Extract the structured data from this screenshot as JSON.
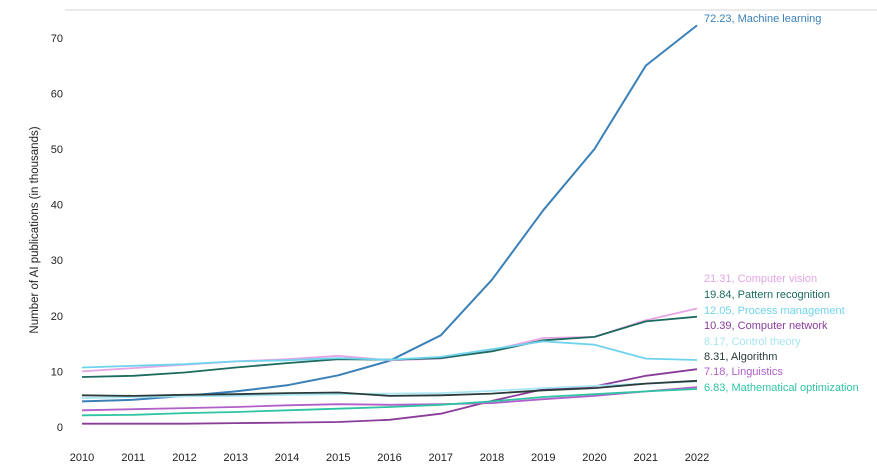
{
  "chart_data": {
    "type": "line",
    "title": "",
    "xlabel": "",
    "ylabel": "Number of AI publications (in thousands)",
    "ylim": [
      0,
      72
    ],
    "yticks": [
      0,
      10,
      20,
      30,
      40,
      50,
      60,
      70
    ],
    "x": [
      "2010",
      "2011",
      "2012",
      "2013",
      "2014",
      "2015",
      "2016",
      "2017",
      "2018",
      "2019",
      "2020",
      "2021",
      "2022"
    ],
    "grid": false,
    "legend": "end-of-line labels",
    "series": [
      {
        "name": "Machine learning",
        "end_label": "72.23, Machine learning",
        "color": "#3a80b8",
        "values": [
          4.6,
          4.9,
          5.6,
          6.4,
          7.5,
          9.3,
          11.9,
          16.5,
          26.5,
          39.0,
          50.0,
          65.0,
          72.23
        ]
      },
      {
        "name": "Computer vision",
        "end_label": "21.31, Computer vision",
        "color": "#e6a6e6",
        "values": [
          10.0,
          10.6,
          11.2,
          11.8,
          12.2,
          12.8,
          12.0,
          12.3,
          13.8,
          16.0,
          16.2,
          19.2,
          21.31
        ]
      },
      {
        "name": "Pattern recognition",
        "end_label": "19.84, Pattern recognition",
        "color": "#1c6b5e",
        "values": [
          9.0,
          9.2,
          9.8,
          10.7,
          11.5,
          12.2,
          12.1,
          12.4,
          13.6,
          15.6,
          16.2,
          19.0,
          19.84
        ]
      },
      {
        "name": "Process management",
        "end_label": "12.05, Process management",
        "color": "#6fd3ee",
        "values": [
          10.7,
          11.0,
          11.3,
          11.8,
          12.0,
          12.4,
          12.1,
          12.6,
          14.0,
          15.4,
          14.8,
          12.3,
          12.05
        ]
      },
      {
        "name": "Computer network",
        "end_label": "10.39, Computer network",
        "color": "#8a3c9a",
        "values": [
          0.6,
          0.6,
          0.6,
          0.7,
          0.8,
          0.9,
          1.3,
          2.4,
          4.7,
          6.8,
          7.3,
          9.2,
          10.39
        ]
      },
      {
        "name": "Control theory",
        "end_label": "8.17, Control theory",
        "color": "#a8e6f4",
        "values": [
          5.2,
          5.4,
          5.5,
          5.6,
          5.8,
          5.9,
          6.0,
          6.1,
          6.5,
          7.0,
          7.4,
          7.8,
          8.17
        ]
      },
      {
        "name": "Algorithm",
        "end_label": "8.31, Algorithm",
        "color": "#2b3b3b",
        "values": [
          5.7,
          5.6,
          5.8,
          5.9,
          6.1,
          6.2,
          5.6,
          5.7,
          6.0,
          6.6,
          7.0,
          7.8,
          8.31
        ]
      },
      {
        "name": "Linguistics",
        "end_label": "7.18, Linguistics",
        "color": "#b060c8",
        "values": [
          3.0,
          3.2,
          3.4,
          3.6,
          3.9,
          4.1,
          4.0,
          4.1,
          4.3,
          5.0,
          5.6,
          6.4,
          7.18
        ]
      },
      {
        "name": "Mathematical optimization",
        "end_label": "6.83, Mathematical optimization",
        "color": "#2ec4a4",
        "values": [
          2.1,
          2.2,
          2.5,
          2.7,
          3.0,
          3.3,
          3.6,
          4.0,
          4.6,
          5.4,
          5.9,
          6.4,
          6.83
        ]
      }
    ]
  }
}
